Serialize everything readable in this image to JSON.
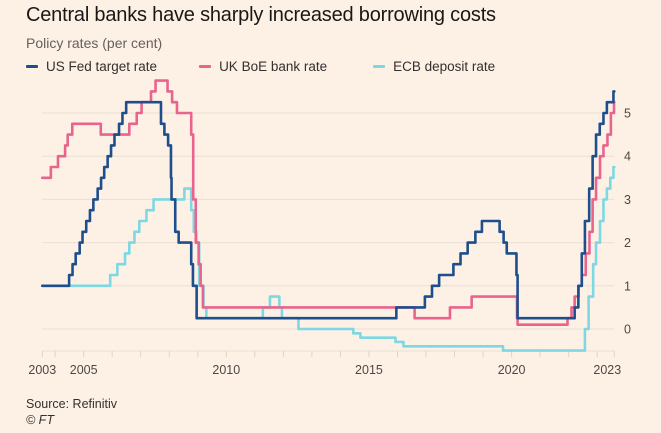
{
  "header": {
    "title": "Central banks have sharply increased borrowing costs",
    "subtitle": "Policy rates (per cent)"
  },
  "footer": {
    "source": "Source: Refinitiv",
    "copyright": "© FT"
  },
  "colors": {
    "background": "#fdf1e6",
    "fed": "#1f4e8c",
    "boe": "#e8648d",
    "ecb": "#7dd8e4",
    "grid": "#ece0d4"
  },
  "chart_data": {
    "type": "line",
    "title": "Central banks have sharply increased borrowing costs",
    "subtitle": "Policy rates (per cent)",
    "xlabel": "",
    "ylabel": "Policy rates (per cent)",
    "xlim": [
      2003.55,
      2023.6
    ],
    "ylim": [
      -0.6,
      5.8
    ],
    "x_ticks": [
      2003.55,
      2004,
      2005,
      2006,
      2007,
      2008,
      2009,
      2010,
      2011,
      2012,
      2013,
      2014,
      2015,
      2016,
      2017,
      2018,
      2019,
      2020,
      2021,
      2022,
      2023,
      2023.6
    ],
    "x_tick_labels": [
      {
        "x": 2003.55,
        "label": "2003"
      },
      {
        "x": 2005,
        "label": "2005"
      },
      {
        "x": 2010,
        "label": "2010"
      },
      {
        "x": 2015,
        "label": "2015"
      },
      {
        "x": 2020,
        "label": "2020"
      },
      {
        "x": 2023.6,
        "label": "2023"
      }
    ],
    "y_ticks": [
      0,
      1,
      2,
      3,
      4,
      5
    ],
    "y_tick_labels": [
      "0",
      "1",
      "2",
      "3",
      "4",
      "5"
    ],
    "y_axis_side": "right",
    "grid": true,
    "legend_position": "top-left",
    "step": true,
    "series": [
      {
        "name": "US Fed target rate",
        "color_key": "fed",
        "points": [
          [
            2003.55,
            1.0
          ],
          [
            2004.49,
            1.25
          ],
          [
            2004.61,
            1.5
          ],
          [
            2004.72,
            1.75
          ],
          [
            2004.86,
            2.0
          ],
          [
            2004.96,
            2.25
          ],
          [
            2005.09,
            2.5
          ],
          [
            2005.22,
            2.75
          ],
          [
            2005.34,
            3.0
          ],
          [
            2005.49,
            3.25
          ],
          [
            2005.61,
            3.5
          ],
          [
            2005.72,
            3.75
          ],
          [
            2005.84,
            4.0
          ],
          [
            2005.96,
            4.25
          ],
          [
            2006.08,
            4.5
          ],
          [
            2006.24,
            4.75
          ],
          [
            2006.36,
            5.0
          ],
          [
            2006.49,
            5.25
          ],
          [
            2007.71,
            4.75
          ],
          [
            2007.83,
            4.5
          ],
          [
            2007.96,
            4.25
          ],
          [
            2008.06,
            3.5
          ],
          [
            2008.08,
            3.0
          ],
          [
            2008.21,
            2.25
          ],
          [
            2008.33,
            2.0
          ],
          [
            2008.77,
            1.5
          ],
          [
            2008.83,
            1.0
          ],
          [
            2008.96,
            0.25
          ],
          [
            2015.96,
            0.5
          ],
          [
            2016.96,
            0.75
          ],
          [
            2017.21,
            1.0
          ],
          [
            2017.46,
            1.25
          ],
          [
            2017.96,
            1.5
          ],
          [
            2018.21,
            1.75
          ],
          [
            2018.46,
            2.0
          ],
          [
            2018.73,
            2.25
          ],
          [
            2018.96,
            2.5
          ],
          [
            2019.58,
            2.25
          ],
          [
            2019.72,
            2.0
          ],
          [
            2019.83,
            1.75
          ],
          [
            2020.17,
            1.25
          ],
          [
            2020.21,
            0.25
          ],
          [
            2022.21,
            0.5
          ],
          [
            2022.34,
            1.0
          ],
          [
            2022.46,
            1.75
          ],
          [
            2022.57,
            2.5
          ],
          [
            2022.72,
            3.25
          ],
          [
            2022.84,
            4.0
          ],
          [
            2022.96,
            4.5
          ],
          [
            2023.09,
            4.75
          ],
          [
            2023.22,
            5.0
          ],
          [
            2023.34,
            5.25
          ],
          [
            2023.57,
            5.5
          ],
          [
            2023.6,
            5.5
          ]
        ]
      },
      {
        "name": "UK BoE bank rate",
        "color_key": "boe",
        "points": [
          [
            2003.55,
            3.5
          ],
          [
            2003.85,
            3.75
          ],
          [
            2004.1,
            4.0
          ],
          [
            2004.35,
            4.25
          ],
          [
            2004.44,
            4.5
          ],
          [
            2004.6,
            4.75
          ],
          [
            2005.6,
            4.5
          ],
          [
            2006.6,
            4.75
          ],
          [
            2006.86,
            5.0
          ],
          [
            2007.03,
            5.25
          ],
          [
            2007.36,
            5.5
          ],
          [
            2007.52,
            5.75
          ],
          [
            2007.94,
            5.5
          ],
          [
            2008.1,
            5.25
          ],
          [
            2008.27,
            5.0
          ],
          [
            2008.77,
            4.5
          ],
          [
            2008.84,
            3.0
          ],
          [
            2008.93,
            2.0
          ],
          [
            2009.03,
            1.5
          ],
          [
            2009.1,
            1.0
          ],
          [
            2009.18,
            0.5
          ],
          [
            2016.6,
            0.25
          ],
          [
            2017.84,
            0.5
          ],
          [
            2018.6,
            0.75
          ],
          [
            2020.19,
            0.25
          ],
          [
            2020.21,
            0.1
          ],
          [
            2021.96,
            0.25
          ],
          [
            2022.1,
            0.5
          ],
          [
            2022.21,
            0.75
          ],
          [
            2022.35,
            1.0
          ],
          [
            2022.46,
            1.25
          ],
          [
            2022.6,
            1.75
          ],
          [
            2022.73,
            2.25
          ],
          [
            2022.84,
            3.0
          ],
          [
            2022.96,
            3.5
          ],
          [
            2023.1,
            4.0
          ],
          [
            2023.22,
            4.25
          ],
          [
            2023.36,
            4.5
          ],
          [
            2023.48,
            5.0
          ],
          [
            2023.59,
            5.25
          ],
          [
            2023.6,
            5.25
          ]
        ]
      },
      {
        "name": "ECB deposit rate",
        "color_key": "ecb",
        "points": [
          [
            2003.55,
            1.0
          ],
          [
            2005.93,
            1.25
          ],
          [
            2006.18,
            1.5
          ],
          [
            2006.45,
            1.75
          ],
          [
            2006.6,
            2.0
          ],
          [
            2006.78,
            2.25
          ],
          [
            2006.95,
            2.5
          ],
          [
            2007.2,
            2.75
          ],
          [
            2007.45,
            3.0
          ],
          [
            2008.53,
            3.25
          ],
          [
            2008.77,
            2.75
          ],
          [
            2008.86,
            2.25
          ],
          [
            2008.95,
            2.0
          ],
          [
            2009.05,
            1.0
          ],
          [
            2009.2,
            0.5
          ],
          [
            2009.3,
            0.25
          ],
          [
            2011.28,
            0.5
          ],
          [
            2011.53,
            0.75
          ],
          [
            2011.86,
            0.5
          ],
          [
            2011.95,
            0.25
          ],
          [
            2012.53,
            0.0
          ],
          [
            2014.45,
            -0.1
          ],
          [
            2014.7,
            -0.2
          ],
          [
            2015.93,
            -0.3
          ],
          [
            2016.21,
            -0.4
          ],
          [
            2019.7,
            -0.5
          ],
          [
            2022.57,
            0.0
          ],
          [
            2022.7,
            0.75
          ],
          [
            2022.86,
            1.5
          ],
          [
            2022.96,
            2.0
          ],
          [
            2023.1,
            2.5
          ],
          [
            2023.22,
            3.0
          ],
          [
            2023.34,
            3.25
          ],
          [
            2023.46,
            3.5
          ],
          [
            2023.57,
            3.75
          ],
          [
            2023.6,
            3.75
          ]
        ]
      }
    ]
  },
  "legend": [
    {
      "label": "US Fed target rate",
      "color_key": "fed"
    },
    {
      "label": "UK BoE bank rate",
      "color_key": "boe"
    },
    {
      "label": "ECB deposit rate",
      "color_key": "ecb"
    }
  ]
}
